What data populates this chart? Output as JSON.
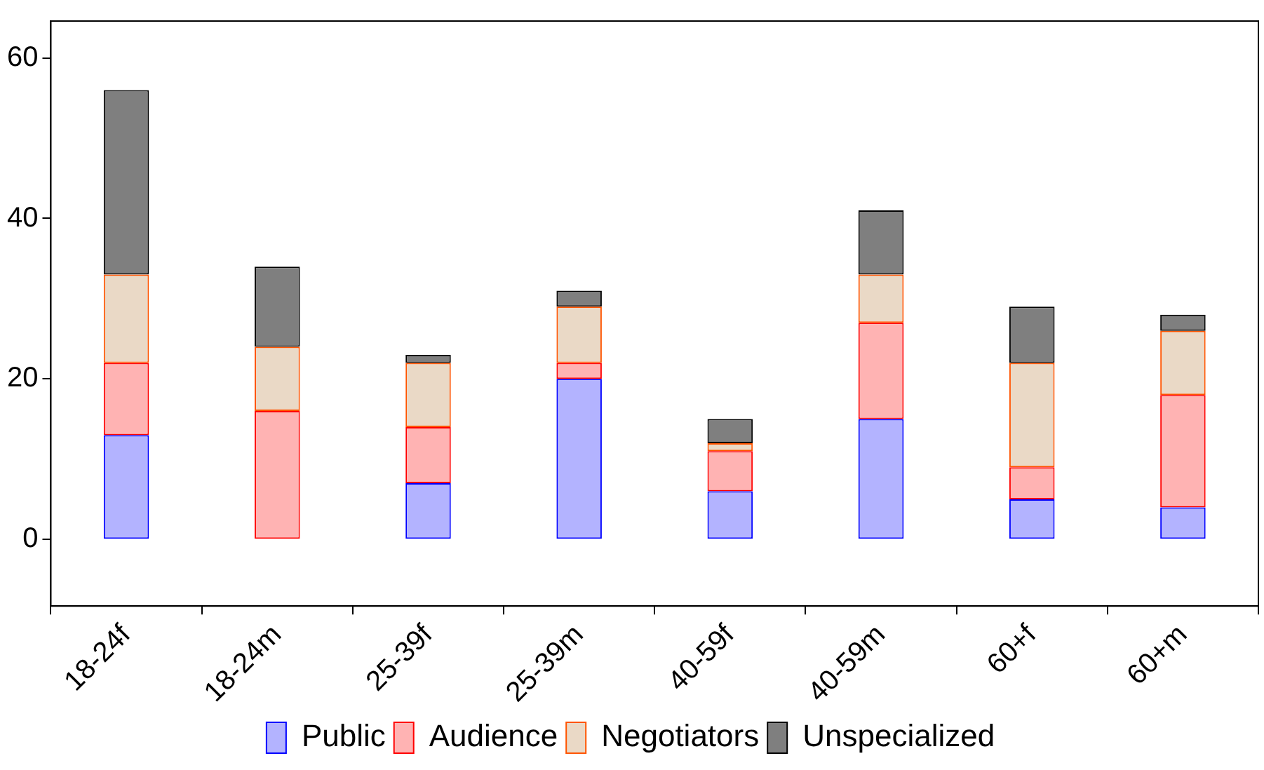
{
  "chart_data": {
    "type": "bar",
    "stacked": true,
    "categories": [
      "18-24f",
      "18-24m",
      "25-39f",
      "25-39m",
      "40-59f",
      "40-59m",
      "60+f",
      "60+m"
    ],
    "series": [
      {
        "name": "Public",
        "color": "#b3b3ff",
        "values": [
          13,
          0,
          7,
          20,
          6,
          15,
          5,
          4
        ]
      },
      {
        "name": "Audience",
        "color": "#ffb3b3",
        "values": [
          9,
          16,
          7,
          2,
          5,
          12,
          4,
          14
        ]
      },
      {
        "name": "Negotiators",
        "color": "#ead9c6",
        "values": [
          11,
          8,
          8,
          7,
          1,
          6,
          13,
          8
        ]
      },
      {
        "name": "Unspecialized",
        "color": "#7f7f7f",
        "values": [
          23,
          10,
          1,
          2,
          3,
          8,
          7,
          2
        ]
      }
    ],
    "ylim": [
      -8.3,
      64.6
    ],
    "yticks": [
      0,
      20,
      40,
      60
    ],
    "grid": false,
    "legend": "bottom"
  }
}
